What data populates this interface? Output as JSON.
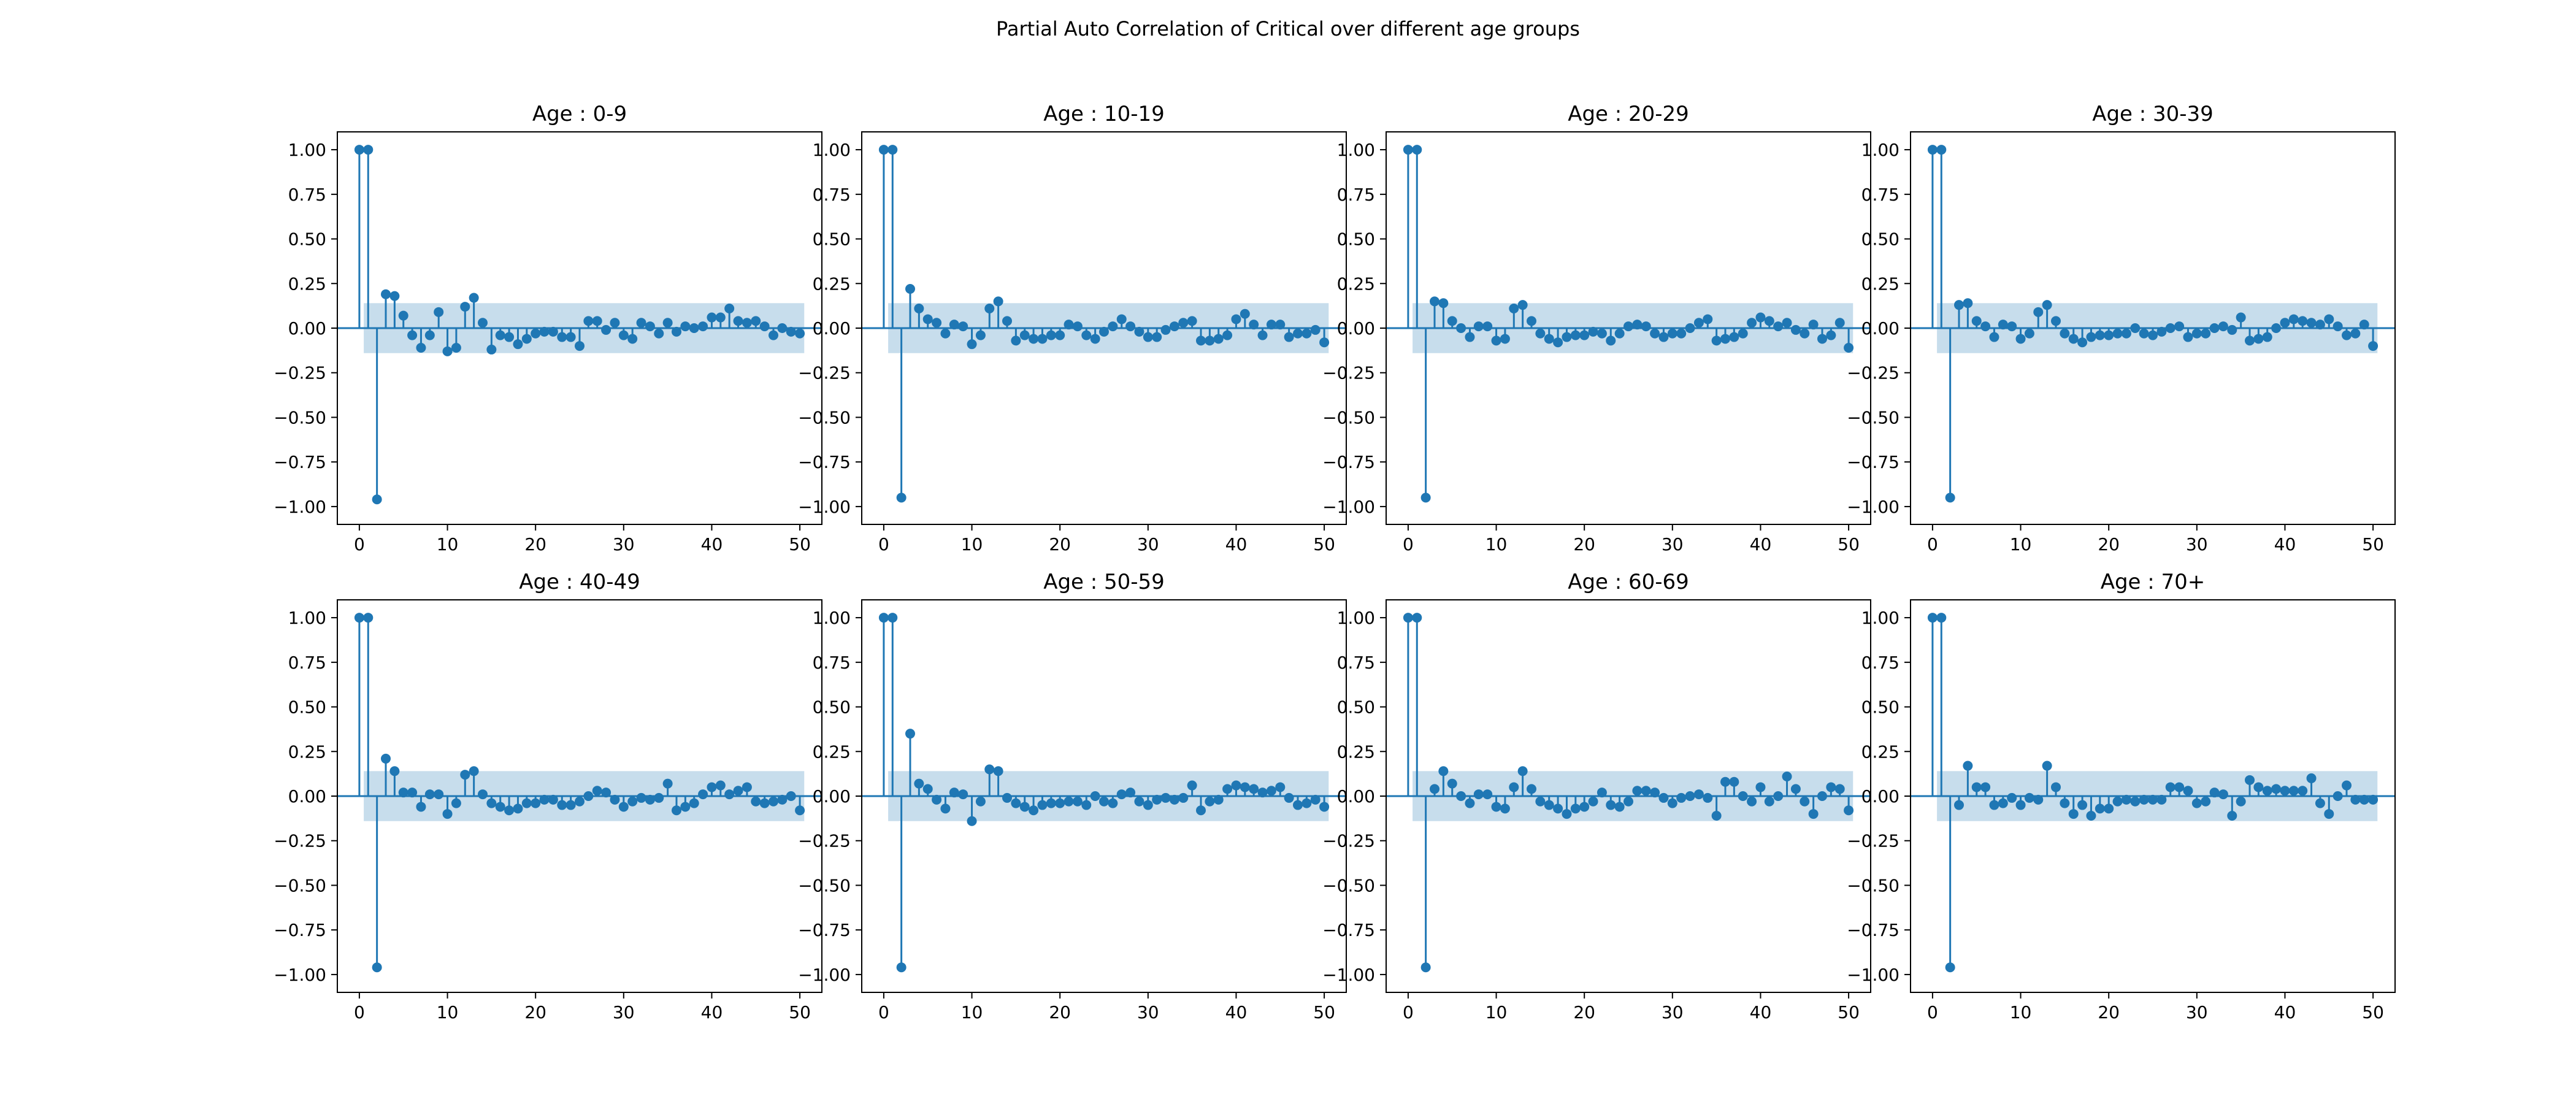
{
  "figure": {
    "title": "Partial Auto Correlation of Critical over different age groups"
  },
  "colors": {
    "stem": "#1f77b4",
    "confidence_band": "#1f77b4",
    "frame": "#000000"
  },
  "chart_data": [
    {
      "type": "stem",
      "title": "Age : 0-9",
      "xlim": [
        -2.5,
        52.5
      ],
      "ylim": [
        -1.1,
        1.1
      ],
      "xticks": [
        0,
        10,
        20,
        30,
        40,
        50
      ],
      "yticks": [
        1.0,
        0.75,
        0.5,
        0.25,
        0.0,
        -0.25,
        -0.5,
        -0.75,
        -1.0
      ],
      "ytick_labels": [
        "1.00",
        "0.75",
        "0.50",
        "0.25",
        "0.00",
        "−0.25",
        "−0.50",
        "−0.75",
        "−1.00"
      ],
      "confidence_band": 0.14,
      "lags": [
        0,
        1,
        2,
        3,
        4,
        5,
        6,
        7,
        8,
        9,
        10,
        11,
        12,
        13,
        14,
        15,
        16,
        17,
        18,
        19,
        20,
        21,
        22,
        23,
        24,
        25,
        26,
        27,
        28,
        29,
        30,
        31,
        32,
        33,
        34,
        35,
        36,
        37,
        38,
        39,
        40,
        41,
        42,
        43,
        44,
        45,
        46,
        47,
        48,
        49,
        50
      ],
      "values": [
        1.0,
        1.0,
        -0.96,
        0.19,
        0.18,
        0.07,
        -0.04,
        -0.11,
        -0.04,
        0.09,
        -0.13,
        -0.11,
        0.12,
        0.17,
        0.03,
        -0.12,
        -0.04,
        -0.05,
        -0.09,
        -0.06,
        -0.03,
        -0.02,
        -0.02,
        -0.05,
        -0.05,
        -0.1,
        0.04,
        0.04,
        -0.01,
        0.03,
        -0.04,
        -0.06,
        0.03,
        0.01,
        -0.03,
        0.03,
        -0.02,
        0.01,
        0.0,
        0.01,
        0.06,
        0.06,
        0.11,
        0.04,
        0.03,
        0.04,
        0.01,
        -0.04,
        0.0,
        -0.02,
        -0.03
      ]
    },
    {
      "type": "stem",
      "title": "Age : 10-19",
      "xlim": [
        -2.5,
        52.5
      ],
      "ylim": [
        -1.1,
        1.1
      ],
      "xticks": [
        0,
        10,
        20,
        30,
        40,
        50
      ],
      "yticks": [
        1.0,
        0.75,
        0.5,
        0.25,
        0.0,
        -0.25,
        -0.5,
        -0.75,
        -1.0
      ],
      "ytick_labels": [
        "1.00",
        "0.75",
        "0.50",
        "0.25",
        "0.00",
        "−0.25",
        "−0.50",
        "−0.75",
        "−1.00"
      ],
      "confidence_band": 0.14,
      "lags": [
        0,
        1,
        2,
        3,
        4,
        5,
        6,
        7,
        8,
        9,
        10,
        11,
        12,
        13,
        14,
        15,
        16,
        17,
        18,
        19,
        20,
        21,
        22,
        23,
        24,
        25,
        26,
        27,
        28,
        29,
        30,
        31,
        32,
        33,
        34,
        35,
        36,
        37,
        38,
        39,
        40,
        41,
        42,
        43,
        44,
        45,
        46,
        47,
        48,
        49,
        50
      ],
      "values": [
        1.0,
        1.0,
        -0.95,
        0.22,
        0.11,
        0.05,
        0.03,
        -0.03,
        0.02,
        0.01,
        -0.09,
        -0.04,
        0.11,
        0.15,
        0.04,
        -0.07,
        -0.04,
        -0.06,
        -0.06,
        -0.04,
        -0.04,
        0.02,
        0.01,
        -0.04,
        -0.06,
        -0.02,
        0.01,
        0.05,
        0.01,
        -0.02,
        -0.05,
        -0.05,
        -0.01,
        0.01,
        0.03,
        0.04,
        -0.07,
        -0.07,
        -0.06,
        -0.04,
        0.05,
        0.08,
        0.02,
        -0.04,
        0.02,
        0.02,
        -0.05,
        -0.03,
        -0.03,
        -0.01,
        -0.08
      ]
    },
    {
      "type": "stem",
      "title": "Age : 20-29",
      "xlim": [
        -2.5,
        52.5
      ],
      "ylim": [
        -1.1,
        1.1
      ],
      "xticks": [
        0,
        10,
        20,
        30,
        40,
        50
      ],
      "yticks": [
        1.0,
        0.75,
        0.5,
        0.25,
        0.0,
        -0.25,
        -0.5,
        -0.75,
        -1.0
      ],
      "ytick_labels": [
        "1.00",
        "0.75",
        "0.50",
        "0.25",
        "0.00",
        "−0.25",
        "−0.50",
        "−0.75",
        "−1.00"
      ],
      "confidence_band": 0.14,
      "lags": [
        0,
        1,
        2,
        3,
        4,
        5,
        6,
        7,
        8,
        9,
        10,
        11,
        12,
        13,
        14,
        15,
        16,
        17,
        18,
        19,
        20,
        21,
        22,
        23,
        24,
        25,
        26,
        27,
        28,
        29,
        30,
        31,
        32,
        33,
        34,
        35,
        36,
        37,
        38,
        39,
        40,
        41,
        42,
        43,
        44,
        45,
        46,
        47,
        48,
        49,
        50
      ],
      "values": [
        1.0,
        1.0,
        -0.95,
        0.15,
        0.14,
        0.04,
        0.0,
        -0.05,
        0.01,
        0.01,
        -0.07,
        -0.06,
        0.11,
        0.13,
        0.04,
        -0.03,
        -0.06,
        -0.08,
        -0.05,
        -0.04,
        -0.04,
        -0.02,
        -0.03,
        -0.07,
        -0.03,
        0.01,
        0.02,
        0.01,
        -0.03,
        -0.05,
        -0.03,
        -0.03,
        0.0,
        0.03,
        0.05,
        -0.07,
        -0.06,
        -0.05,
        -0.03,
        0.03,
        0.06,
        0.04,
        0.01,
        0.03,
        -0.01,
        -0.03,
        0.02,
        -0.06,
        -0.04,
        0.03,
        -0.11
      ]
    },
    {
      "type": "stem",
      "title": "Age : 30-39",
      "xlim": [
        -2.5,
        52.5
      ],
      "ylim": [
        -1.1,
        1.1
      ],
      "xticks": [
        0,
        10,
        20,
        30,
        40,
        50
      ],
      "yticks": [
        1.0,
        0.75,
        0.5,
        0.25,
        0.0,
        -0.25,
        -0.5,
        -0.75,
        -1.0
      ],
      "ytick_labels": [
        "1.00",
        "0.75",
        "0.50",
        "0.25",
        "0.00",
        "−0.25",
        "−0.50",
        "−0.75",
        "−1.00"
      ],
      "confidence_band": 0.14,
      "lags": [
        0,
        1,
        2,
        3,
        4,
        5,
        6,
        7,
        8,
        9,
        10,
        11,
        12,
        13,
        14,
        15,
        16,
        17,
        18,
        19,
        20,
        21,
        22,
        23,
        24,
        25,
        26,
        27,
        28,
        29,
        30,
        31,
        32,
        33,
        34,
        35,
        36,
        37,
        38,
        39,
        40,
        41,
        42,
        43,
        44,
        45,
        46,
        47,
        48,
        49,
        50
      ],
      "values": [
        1.0,
        1.0,
        -0.95,
        0.13,
        0.14,
        0.04,
        0.01,
        -0.05,
        0.02,
        0.01,
        -0.06,
        -0.03,
        0.09,
        0.13,
        0.04,
        -0.03,
        -0.06,
        -0.08,
        -0.05,
        -0.04,
        -0.04,
        -0.03,
        -0.03,
        0.0,
        -0.03,
        -0.04,
        -0.02,
        0.0,
        0.01,
        -0.05,
        -0.03,
        -0.03,
        0.0,
        0.01,
        -0.01,
        0.06,
        -0.07,
        -0.06,
        -0.05,
        0.0,
        0.03,
        0.05,
        0.04,
        0.03,
        0.02,
        0.05,
        0.01,
        -0.04,
        -0.03,
        0.02,
        -0.1
      ]
    },
    {
      "type": "stem",
      "title": "Age : 40-49",
      "xlim": [
        -2.5,
        52.5
      ],
      "ylim": [
        -1.1,
        1.1
      ],
      "xticks": [
        0,
        10,
        20,
        30,
        40,
        50
      ],
      "yticks": [
        1.0,
        0.75,
        0.5,
        0.25,
        0.0,
        -0.25,
        -0.5,
        -0.75,
        -1.0
      ],
      "ytick_labels": [
        "1.00",
        "0.75",
        "0.50",
        "0.25",
        "0.00",
        "−0.25",
        "−0.50",
        "−0.75",
        "−1.00"
      ],
      "confidence_band": 0.14,
      "lags": [
        0,
        1,
        2,
        3,
        4,
        5,
        6,
        7,
        8,
        9,
        10,
        11,
        12,
        13,
        14,
        15,
        16,
        17,
        18,
        19,
        20,
        21,
        22,
        23,
        24,
        25,
        26,
        27,
        28,
        29,
        30,
        31,
        32,
        33,
        34,
        35,
        36,
        37,
        38,
        39,
        40,
        41,
        42,
        43,
        44,
        45,
        46,
        47,
        48,
        49,
        50
      ],
      "values": [
        1.0,
        1.0,
        -0.96,
        0.21,
        0.14,
        0.02,
        0.02,
        -0.06,
        0.01,
        0.01,
        -0.1,
        -0.04,
        0.12,
        0.14,
        0.01,
        -0.04,
        -0.06,
        -0.08,
        -0.07,
        -0.04,
        -0.04,
        -0.02,
        -0.02,
        -0.05,
        -0.05,
        -0.03,
        0.0,
        0.03,
        0.02,
        -0.02,
        -0.06,
        -0.03,
        -0.01,
        -0.02,
        -0.01,
        0.07,
        -0.08,
        -0.06,
        -0.04,
        0.01,
        0.05,
        0.06,
        0.01,
        0.03,
        0.05,
        -0.03,
        -0.04,
        -0.03,
        -0.02,
        0.0,
        -0.08
      ]
    },
    {
      "type": "stem",
      "title": "Age : 50-59",
      "xlim": [
        -2.5,
        52.5
      ],
      "ylim": [
        -1.1,
        1.1
      ],
      "xticks": [
        0,
        10,
        20,
        30,
        40,
        50
      ],
      "yticks": [
        1.0,
        0.75,
        0.5,
        0.25,
        0.0,
        -0.25,
        -0.5,
        -0.75,
        -1.0
      ],
      "ytick_labels": [
        "1.00",
        "0.75",
        "0.50",
        "0.25",
        "0.00",
        "−0.25",
        "−0.50",
        "−0.75",
        "−1.00"
      ],
      "confidence_band": 0.14,
      "lags": [
        0,
        1,
        2,
        3,
        4,
        5,
        6,
        7,
        8,
        9,
        10,
        11,
        12,
        13,
        14,
        15,
        16,
        17,
        18,
        19,
        20,
        21,
        22,
        23,
        24,
        25,
        26,
        27,
        28,
        29,
        30,
        31,
        32,
        33,
        34,
        35,
        36,
        37,
        38,
        39,
        40,
        41,
        42,
        43,
        44,
        45,
        46,
        47,
        48,
        49,
        50
      ],
      "values": [
        1.0,
        1.0,
        -0.96,
        0.35,
        0.07,
        0.04,
        -0.02,
        -0.07,
        0.02,
        0.01,
        -0.14,
        -0.03,
        0.15,
        0.14,
        -0.01,
        -0.04,
        -0.06,
        -0.08,
        -0.05,
        -0.04,
        -0.04,
        -0.03,
        -0.03,
        -0.05,
        0.0,
        -0.03,
        -0.04,
        0.01,
        0.02,
        -0.03,
        -0.05,
        -0.02,
        -0.01,
        -0.02,
        -0.01,
        0.06,
        -0.08,
        -0.03,
        -0.02,
        0.04,
        0.06,
        0.05,
        0.04,
        0.02,
        0.03,
        0.05,
        -0.01,
        -0.05,
        -0.04,
        -0.02,
        -0.06
      ]
    },
    {
      "type": "stem",
      "title": "Age : 60-69",
      "xlim": [
        -2.5,
        52.5
      ],
      "ylim": [
        -1.1,
        1.1
      ],
      "xticks": [
        0,
        10,
        20,
        30,
        40,
        50
      ],
      "yticks": [
        1.0,
        0.75,
        0.5,
        0.25,
        0.0,
        -0.25,
        -0.5,
        -0.75,
        -1.0
      ],
      "ytick_labels": [
        "1.00",
        "0.75",
        "0.50",
        "0.25",
        "0.00",
        "−0.25",
        "−0.50",
        "−0.75",
        "−1.00"
      ],
      "confidence_band": 0.14,
      "lags": [
        0,
        1,
        2,
        3,
        4,
        5,
        6,
        7,
        8,
        9,
        10,
        11,
        12,
        13,
        14,
        15,
        16,
        17,
        18,
        19,
        20,
        21,
        22,
        23,
        24,
        25,
        26,
        27,
        28,
        29,
        30,
        31,
        32,
        33,
        34,
        35,
        36,
        37,
        38,
        39,
        40,
        41,
        42,
        43,
        44,
        45,
        46,
        47,
        48,
        49,
        50
      ],
      "values": [
        1.0,
        1.0,
        -0.96,
        0.04,
        0.14,
        0.07,
        0.0,
        -0.04,
        0.01,
        0.01,
        -0.06,
        -0.07,
        0.05,
        0.14,
        0.04,
        -0.03,
        -0.05,
        -0.07,
        -0.1,
        -0.07,
        -0.06,
        -0.03,
        0.02,
        -0.05,
        -0.06,
        -0.03,
        0.03,
        0.03,
        0.02,
        -0.01,
        -0.04,
        -0.01,
        0.0,
        0.01,
        -0.01,
        -0.11,
        0.08,
        0.08,
        0.0,
        -0.03,
        0.05,
        -0.03,
        0.0,
        0.11,
        0.04,
        -0.03,
        -0.1,
        0.0,
        0.05,
        0.04,
        -0.08
      ]
    },
    {
      "type": "stem",
      "title": "Age : 70+",
      "xlim": [
        -2.5,
        52.5
      ],
      "ylim": [
        -1.1,
        1.1
      ],
      "xticks": [
        0,
        10,
        20,
        30,
        40,
        50
      ],
      "yticks": [
        1.0,
        0.75,
        0.5,
        0.25,
        0.0,
        -0.25,
        -0.5,
        -0.75,
        -1.0
      ],
      "ytick_labels": [
        "1.00",
        "0.75",
        "0.50",
        "0.25",
        "0.00",
        "−0.25",
        "−0.50",
        "−0.75",
        "−1.00"
      ],
      "confidence_band": 0.14,
      "lags": [
        0,
        1,
        2,
        3,
        4,
        5,
        6,
        7,
        8,
        9,
        10,
        11,
        12,
        13,
        14,
        15,
        16,
        17,
        18,
        19,
        20,
        21,
        22,
        23,
        24,
        25,
        26,
        27,
        28,
        29,
        30,
        31,
        32,
        33,
        34,
        35,
        36,
        37,
        38,
        39,
        40,
        41,
        42,
        43,
        44,
        45,
        46,
        47,
        48,
        49,
        50
      ],
      "values": [
        1.0,
        1.0,
        -0.96,
        -0.05,
        0.17,
        0.05,
        0.05,
        -0.05,
        -0.04,
        -0.01,
        -0.05,
        -0.01,
        -0.02,
        0.17,
        0.05,
        -0.04,
        -0.1,
        -0.05,
        -0.11,
        -0.07,
        -0.07,
        -0.03,
        -0.02,
        -0.03,
        -0.02,
        -0.02,
        -0.02,
        0.05,
        0.05,
        0.03,
        -0.04,
        -0.03,
        0.02,
        0.01,
        -0.11,
        -0.03,
        0.09,
        0.05,
        0.03,
        0.04,
        0.03,
        0.03,
        0.03,
        0.1,
        -0.04,
        -0.1,
        0.0,
        0.06,
        -0.02,
        -0.02,
        -0.02
      ]
    }
  ]
}
